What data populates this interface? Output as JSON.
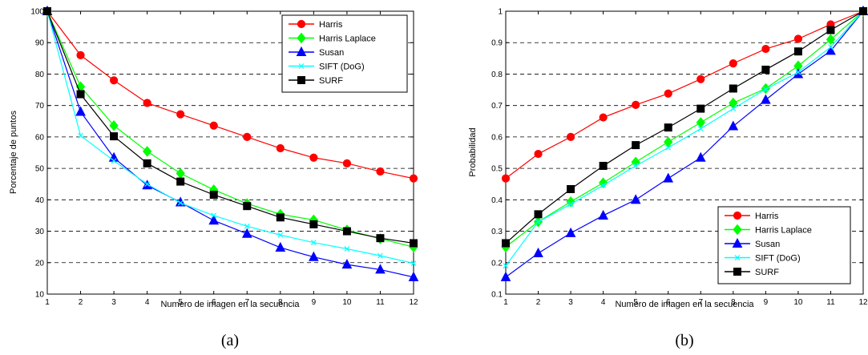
{
  "chart_data": [
    {
      "type": "line",
      "x": [
        1,
        2,
        3,
        4,
        5,
        6,
        7,
        8,
        9,
        10,
        11,
        12
      ],
      "xlabel": "Numero de imagen en la secuencia",
      "ylabel": "Porcentaje de puntos",
      "xlim": [
        1,
        12
      ],
      "ylim": [
        10,
        100
      ],
      "yticks": [
        10,
        20,
        30,
        40,
        50,
        60,
        70,
        80,
        90,
        100
      ],
      "grid": "horizontal dashed",
      "legend_position": "top-right",
      "caption": "(a)",
      "series": [
        {
          "name": "Harris",
          "color": "#ff0000",
          "marker": "circle",
          "values": [
            100,
            86,
            78,
            70.8,
            67.2,
            63.6,
            60,
            56.4,
            53.4,
            51.6,
            49,
            46.8
          ]
        },
        {
          "name": "Harris Laplace",
          "color": "#00ff00",
          "marker": "diamond",
          "values": [
            100,
            76,
            63.6,
            55.4,
            48.4,
            43.2,
            38.8,
            35.4,
            33.6,
            30.4,
            27.6,
            25
          ]
        },
        {
          "name": "Susan",
          "color": "#0000ff",
          "marker": "triangle",
          "values": [
            100,
            68,
            53.4,
            44.6,
            39.2,
            33.4,
            29.2,
            24.8,
            21.8,
            19.4,
            17.8,
            15.4
          ]
        },
        {
          "name": "SIFT (DoG)",
          "color": "#00ffff",
          "marker": "x",
          "values": [
            100,
            60.4,
            52.4,
            45,
            39,
            35,
            31.6,
            28.8,
            26.4,
            24.4,
            22.2,
            19.8
          ]
        },
        {
          "name": "SURF",
          "color": "#000000",
          "marker": "square",
          "values": [
            100,
            73.6,
            60.2,
            51.6,
            45.8,
            41.6,
            38,
            34.4,
            32.2,
            30,
            27.8,
            26.2
          ]
        }
      ]
    },
    {
      "type": "line",
      "x": [
        1,
        2,
        3,
        4,
        5,
        6,
        7,
        8,
        9,
        10,
        11,
        12
      ],
      "xlabel": "Numero de imagen en la secuencia",
      "ylabel": "Probabilidad",
      "xlim": [
        1,
        12
      ],
      "ylim": [
        0.1,
        1
      ],
      "yticks": [
        0.1,
        0.2,
        0.3,
        0.4,
        0.5,
        0.6,
        0.7,
        0.8,
        0.9,
        1
      ],
      "grid": "horizontal dashed",
      "legend_position": "bottom-right",
      "caption": "(b)",
      "series": [
        {
          "name": "Harris",
          "color": "#ff0000",
          "marker": "circle",
          "values": [
            0.468,
            0.546,
            0.6,
            0.662,
            0.702,
            0.738,
            0.784,
            0.834,
            0.88,
            0.912,
            0.958,
            1.0
          ]
        },
        {
          "name": " Harris Laplace",
          "color": "#00ff00",
          "marker": "diamond",
          "values": [
            0.25,
            0.33,
            0.394,
            0.454,
            0.52,
            0.584,
            0.646,
            0.708,
            0.754,
            0.826,
            0.91,
            1.0
          ]
        },
        {
          "name": "Susan",
          "color": "#0000ff",
          "marker": "triangle",
          "values": [
            0.154,
            0.23,
            0.294,
            0.35,
            0.4,
            0.468,
            0.534,
            0.634,
            0.718,
            0.8,
            0.874,
            1.0
          ]
        },
        {
          "name": "SIFT (DoG)",
          "color": "#00ffff",
          "marker": "x",
          "values": [
            0.19,
            0.33,
            0.386,
            0.446,
            0.508,
            0.566,
            0.626,
            0.69,
            0.752,
            0.806,
            0.886,
            1.0
          ]
        },
        {
          "name": "SURF",
          "color": "#000000",
          "marker": "square",
          "values": [
            0.262,
            0.354,
            0.434,
            0.508,
            0.574,
            0.63,
            0.69,
            0.754,
            0.814,
            0.872,
            0.94,
            1.0
          ]
        }
      ]
    }
  ]
}
